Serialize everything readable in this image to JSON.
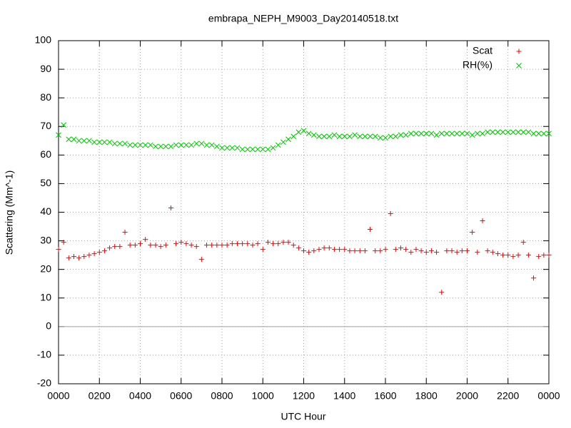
{
  "chart_data": {
    "type": "scatter",
    "title": "embrapa_NEPH_M9003_Day20140518.txt",
    "xlabel": "UTC Hour",
    "ylabel": "Scattering (Mm^-1)",
    "x": [
      0,
      0.25,
      0.5,
      0.75,
      1,
      1.25,
      1.5,
      1.75,
      2,
      2.25,
      2.5,
      2.75,
      3,
      3.25,
      3.5,
      3.75,
      4,
      4.25,
      4.5,
      4.75,
      5,
      5.25,
      5.5,
      5.75,
      6,
      6.25,
      6.5,
      6.75,
      7,
      7.25,
      7.5,
      7.75,
      8,
      8.25,
      8.5,
      8.75,
      9,
      9.25,
      9.5,
      9.75,
      10,
      10.25,
      10.5,
      10.75,
      11,
      11.25,
      11.5,
      11.75,
      12,
      12.25,
      12.5,
      12.75,
      13,
      13.25,
      13.5,
      13.75,
      14,
      14.25,
      14.5,
      14.75,
      15,
      15.25,
      15.5,
      15.75,
      16,
      16.25,
      16.5,
      16.75,
      17,
      17.25,
      17.5,
      17.75,
      18,
      18.25,
      18.5,
      18.75,
      19,
      19.25,
      19.5,
      19.75,
      20,
      20.25,
      20.5,
      20.75,
      21,
      21.25,
      21.5,
      21.75,
      22,
      22.25,
      22.5,
      22.75,
      23,
      23.25,
      23.5,
      23.75,
      24
    ],
    "series": [
      {
        "name": "Scat",
        "color": "#ff0000",
        "marker": "plus",
        "values": [
          27,
          29.5,
          24,
          24.5,
          24,
          24.5,
          25,
          25.5,
          26,
          26.5,
          27.5,
          28,
          28,
          33,
          28.5,
          28.5,
          29,
          30.5,
          28.5,
          28.5,
          28,
          28.5,
          41.5,
          29,
          29.5,
          29,
          28.5,
          28,
          23.5,
          28.5,
          28.5,
          28.5,
          28.5,
          28.5,
          29,
          29,
          29,
          29,
          28.5,
          29,
          27,
          29.5,
          29,
          29,
          29.5,
          29.5,
          28.5,
          27.5,
          26.5,
          26,
          26.5,
          27,
          27.5,
          27.5,
          27,
          27,
          27,
          26.5,
          26.5,
          26.5,
          26.5,
          34,
          26.5,
          26.5,
          27,
          39.5,
          27,
          27.5,
          27,
          26,
          27,
          26.5,
          26,
          26.5,
          26,
          12,
          26.5,
          26.5,
          26,
          26.5,
          26.5,
          33,
          26,
          37,
          26.5,
          26,
          25.5,
          25,
          25,
          24.5,
          25,
          29.5,
          25,
          17,
          24.5,
          25,
          25
        ]
      },
      {
        "name": "RH(%)",
        "color": "#00c000",
        "marker": "cross",
        "values": [
          67,
          70.5,
          65.5,
          65.5,
          65,
          65,
          65,
          64.5,
          64.5,
          64.5,
          64.5,
          64,
          64,
          64,
          63.5,
          63.5,
          63.5,
          63.5,
          63.5,
          63,
          63,
          63,
          63,
          63.5,
          63.5,
          63.5,
          63.5,
          64,
          64,
          63.5,
          63.5,
          63,
          62.5,
          62.5,
          62.5,
          62.5,
          62,
          62,
          62,
          62,
          62,
          62,
          62.5,
          63.5,
          64.5,
          65.5,
          66.5,
          68,
          68.5,
          67.5,
          67,
          66.5,
          66.5,
          66.5,
          67,
          66.5,
          66.5,
          66.5,
          67,
          66.5,
          66.5,
          66.5,
          66.5,
          66,
          66,
          66.5,
          66.5,
          67,
          67,
          67.5,
          67.5,
          67.5,
          67.5,
          67.5,
          67,
          67.5,
          67.5,
          67.5,
          67.5,
          67.5,
          67.5,
          67,
          67.5,
          67.5,
          68,
          68,
          68,
          68,
          68,
          68,
          68,
          68,
          68,
          67.5,
          67.5,
          67.5,
          67.5
        ]
      }
    ],
    "xlim": [
      0,
      24
    ],
    "xticks": [
      {
        "value": 0,
        "label": "0000"
      },
      {
        "value": 2,
        "label": "0200"
      },
      {
        "value": 4,
        "label": "0400"
      },
      {
        "value": 6,
        "label": "0600"
      },
      {
        "value": 8,
        "label": "0800"
      },
      {
        "value": 10,
        "label": "1000"
      },
      {
        "value": 12,
        "label": "1200"
      },
      {
        "value": 14,
        "label": "1400"
      },
      {
        "value": 16,
        "label": "1600"
      },
      {
        "value": 18,
        "label": "1800"
      },
      {
        "value": 20,
        "label": "2000"
      },
      {
        "value": 22,
        "label": "2200"
      },
      {
        "value": 24,
        "label": "0000"
      }
    ],
    "ylim": [
      -20,
      100
    ],
    "yticks": [
      -20,
      -10,
      0,
      10,
      20,
      30,
      40,
      50,
      60,
      70,
      80,
      90,
      100
    ],
    "grid": true,
    "legend": "upper right"
  }
}
